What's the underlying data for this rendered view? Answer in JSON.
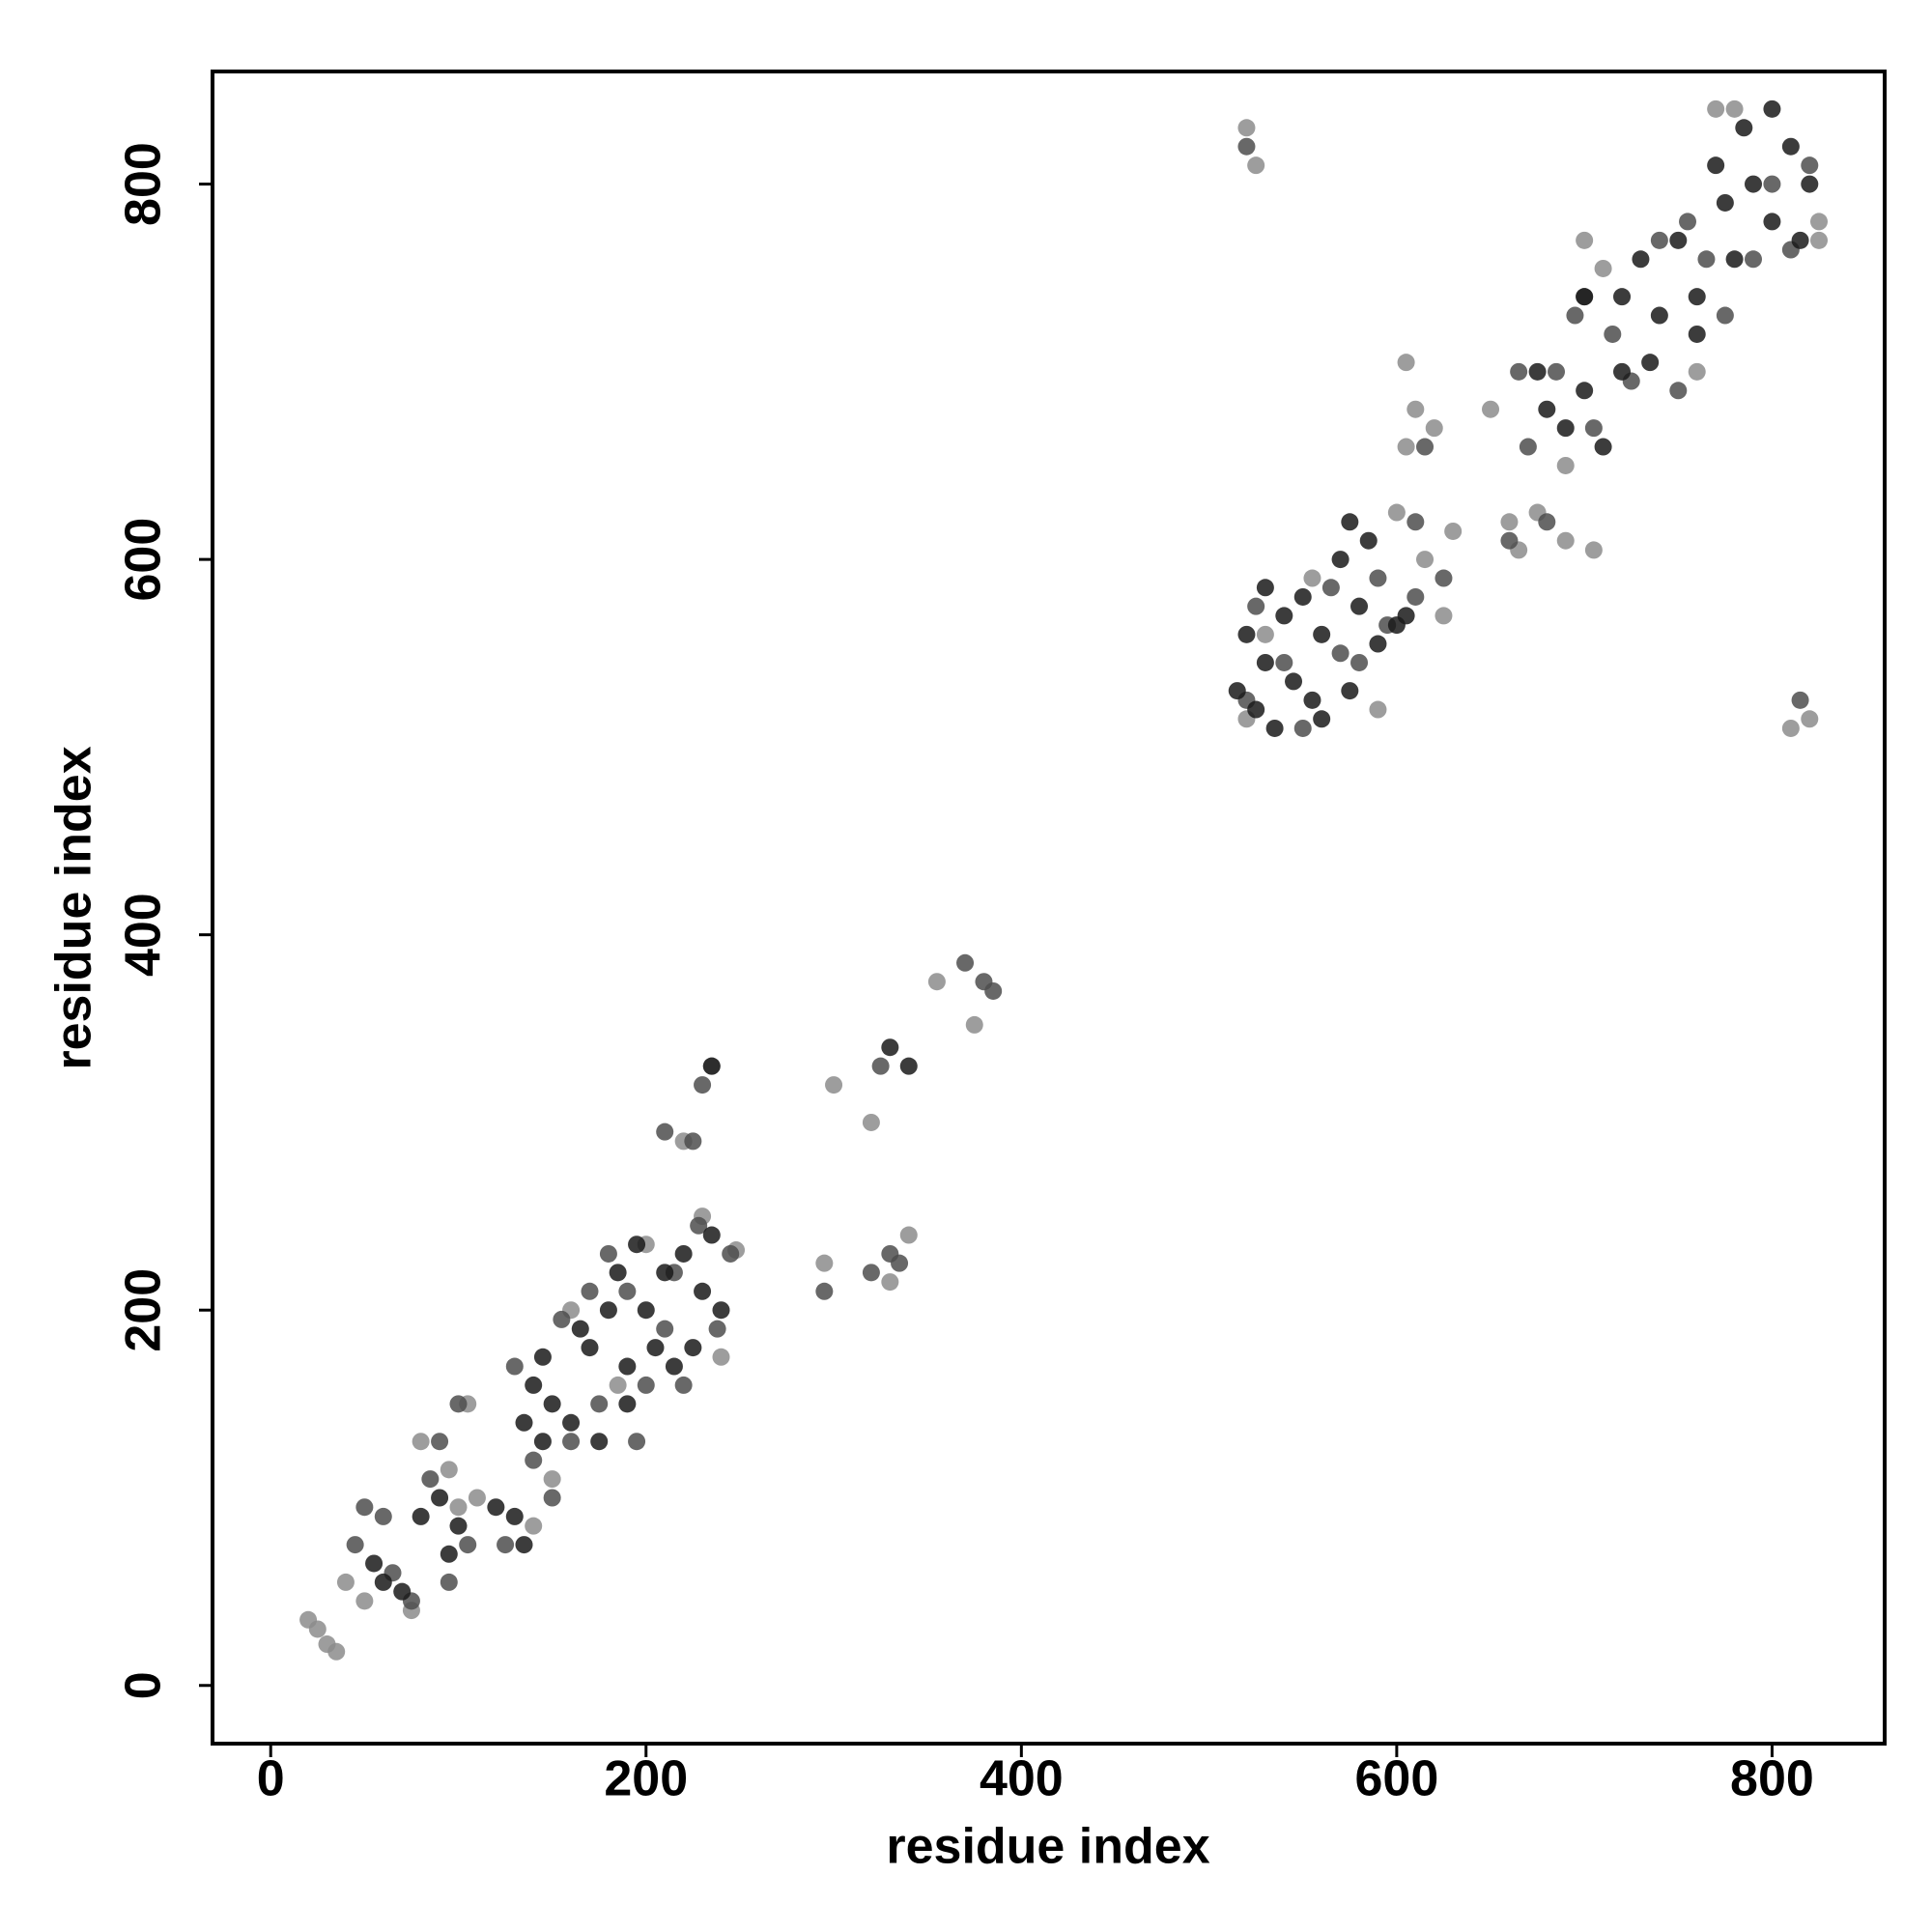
{
  "chart_data": {
    "type": "scatter",
    "xlabel": "residue index",
    "ylabel": "residue index",
    "xlim": [
      -31,
      860
    ],
    "ylim": [
      -31,
      860
    ],
    "xticks": [
      0,
      200,
      400,
      600,
      800
    ],
    "yticks": [
      0,
      200,
      400,
      600,
      800
    ],
    "grid": false,
    "series": [
      {
        "color": "#8c8c8c",
        "x": [
          20,
          25,
          30,
          35,
          40,
          50,
          75,
          80,
          95,
          100,
          105,
          110,
          140,
          150,
          160,
          185,
          200,
          230,
          240,
          248,
          220,
          235,
          300,
          320,
          330,
          340,
          355,
          375,
          295,
          520,
          530,
          555,
          590,
          600,
          615,
          625,
          630,
          605,
          610,
          620,
          605,
          660,
          665,
          675,
          690,
          705,
          650,
          690,
          700,
          710,
          760,
          770,
          780,
          825,
          825,
          520,
          525,
          810,
          820
        ],
        "y": [
          35,
          30,
          22,
          18,
          55,
          45,
          40,
          130,
          115,
          95,
          150,
          100,
          85,
          110,
          200,
          160,
          235,
          250,
          175,
          232,
          290,
          330,
          320,
          300,
          215,
          240,
          375,
          352,
          225,
          515,
          560,
          590,
          520,
          625,
          600,
          570,
          615,
          660,
          680,
          670,
          705,
          620,
          605,
          625,
          610,
          605,
          680,
          650,
          770,
          755,
          700,
          840,
          840,
          780,
          770,
          830,
          810,
          510,
          515
        ]
      },
      {
        "color": "#4d4d4d",
        "x": [
          45,
          50,
          60,
          65,
          75,
          85,
          90,
          100,
          95,
          105,
          125,
          130,
          140,
          150,
          155,
          160,
          170,
          175,
          180,
          190,
          195,
          200,
          210,
          215,
          220,
          228,
          238,
          245,
          210,
          225,
          230,
          295,
          320,
          330,
          335,
          325,
          370,
          380,
          385,
          520,
          525,
          540,
          550,
          565,
          580,
          590,
          595,
          570,
          610,
          625,
          610,
          615,
          665,
          670,
          685,
          695,
          705,
          715,
          725,
          740,
          750,
          755,
          765,
          775,
          790,
          800,
          810,
          820,
          815,
          520,
          660,
          680,
          700
        ],
        "y": [
          75,
          95,
          90,
          60,
          45,
          110,
          130,
          150,
          55,
          75,
          75,
          170,
          120,
          100,
          195,
          130,
          210,
          150,
          230,
          210,
          130,
          160,
          190,
          220,
          160,
          245,
          190,
          230,
          295,
          290,
          320,
          210,
          220,
          230,
          225,
          330,
          385,
          375,
          370,
          525,
          575,
          545,
          510,
          585,
          545,
          590,
          565,
          550,
          580,
          590,
          620,
          660,
          700,
          660,
          700,
          730,
          670,
          720,
          695,
          770,
          690,
          780,
          760,
          730,
          760,
          800,
          765,
          810,
          525,
          820,
          610,
          620,
          740
        ]
      },
      {
        "color": "#1a1a1a",
        "x": [
          55,
          60,
          70,
          80,
          90,
          95,
          100,
          130,
          135,
          140,
          145,
          150,
          160,
          170,
          175,
          180,
          185,
          190,
          195,
          200,
          205,
          210,
          215,
          220,
          225,
          230,
          235,
          240,
          190,
          165,
          145,
          120,
          135,
          330,
          235,
          340,
          515,
          520,
          525,
          530,
          535,
          540,
          545,
          550,
          555,
          560,
          570,
          575,
          580,
          585,
          590,
          600,
          605,
          575,
          560,
          530,
          675,
          680,
          690,
          700,
          710,
          720,
          730,
          740,
          750,
          760,
          770,
          775,
          780,
          790,
          800,
          810,
          815,
          820,
          760,
          735,
          785,
          800,
          700,
          720
        ],
        "y": [
          65,
          55,
          50,
          90,
          100,
          70,
          85,
          90,
          140,
          160,
          130,
          150,
          140,
          180,
          130,
          200,
          220,
          170,
          235,
          200,
          180,
          220,
          170,
          230,
          180,
          210,
          240,
          200,
          150,
          190,
          175,
          95,
          75,
          340,
          330,
          330,
          530,
          560,
          520,
          545,
          510,
          570,
          535,
          580,
          525,
          560,
          600,
          530,
          575,
          610,
          555,
          565,
          570,
          620,
          515,
          585,
          700,
          680,
          670,
          690,
          660,
          740,
          760,
          730,
          770,
          740,
          810,
          790,
          760,
          800,
          780,
          820,
          770,
          800,
          720,
          705,
          830,
          840,
          740,
          700
        ]
      }
    ]
  }
}
